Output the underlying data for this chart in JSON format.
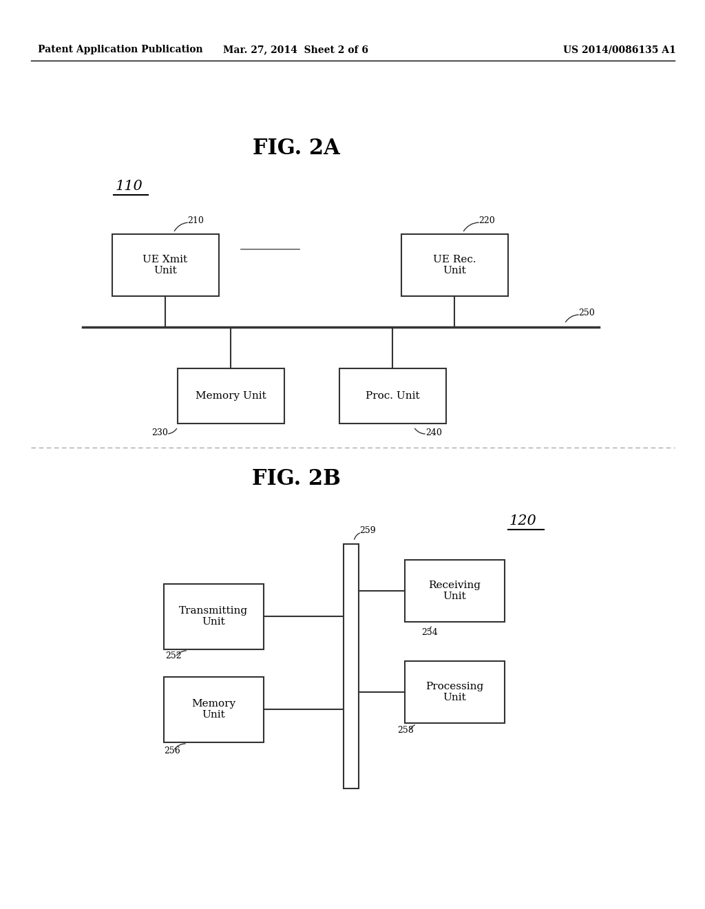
{
  "bg_color": "#ffffff",
  "header_left": "Patent Application Publication",
  "header_mid": "Mar. 27, 2014  Sheet 2 of 6",
  "header_right": "US 2014/0086135 A1",
  "fig2a_title": "FIG. 2A",
  "fig2b_title": "FIG. 2B",
  "fig2a_label": "110",
  "fig2b_label": "120"
}
